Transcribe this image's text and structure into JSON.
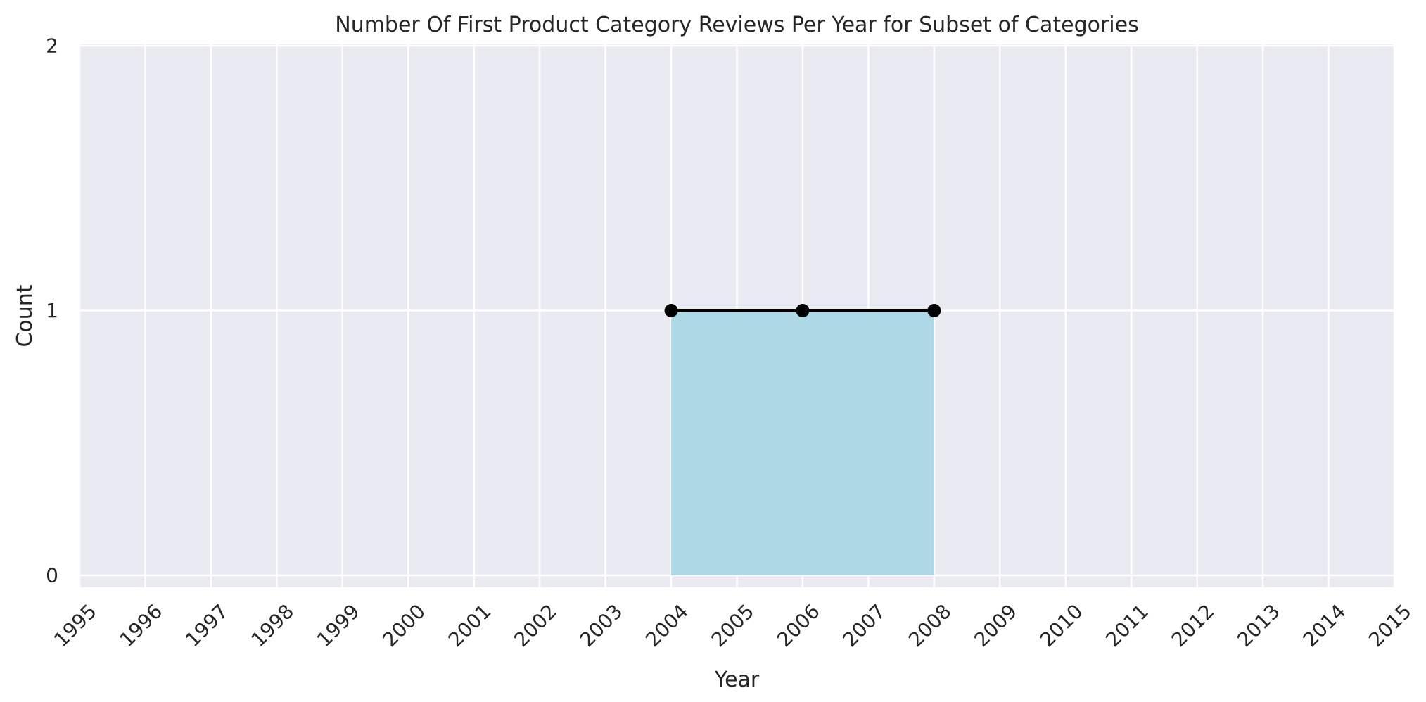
{
  "chart_data": {
    "type": "line",
    "title": "Number Of First Product Category Reviews Per Year for Subset of Categories",
    "xlabel": "Year",
    "ylabel": "Count",
    "x_ticks": [
      "1995",
      "1996",
      "1997",
      "1998",
      "1999",
      "2000",
      "2001",
      "2002",
      "2003",
      "2004",
      "2005",
      "2006",
      "2007",
      "2008",
      "2009",
      "2010",
      "2011",
      "2012",
      "2013",
      "2014",
      "2015"
    ],
    "y_ticks": [
      "0",
      "1",
      "2"
    ],
    "xlim": [
      1995,
      2015
    ],
    "ylim": [
      0,
      2
    ],
    "grid": true,
    "series": [
      {
        "x": [
          2004,
          2006,
          2008
        ],
        "y": [
          1,
          1,
          1
        ],
        "line_color": "#000000",
        "fill_color": "#add8e6",
        "marker": "circle"
      }
    ],
    "colors": {
      "plot_background": "#eaeaf2",
      "gridline": "#ffffff",
      "text": "#262626"
    }
  }
}
